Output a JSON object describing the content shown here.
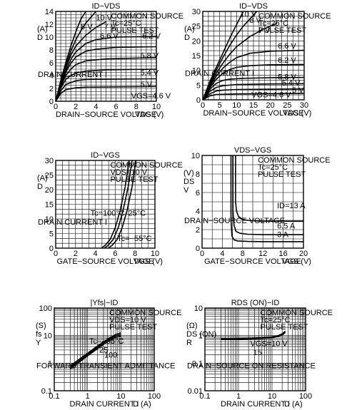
{
  "chart_data": [
    {
      "type": "line",
      "title": "ID−VDS",
      "annotation_lines": [
        "COMMON SOURCE",
        "Tc=25°C",
        "PULSE TEST"
      ],
      "xlabel": "DRAIN−SOURCE VOLTAGE",
      "xunit": "VDS (V)",
      "ylabel": "DRAIN CURRENT I",
      "yunit_lines": [
        "(A)",
        "D"
      ],
      "xlim": [
        0,
        10
      ],
      "ylim": [
        0,
        14
      ],
      "xticks": [
        "0",
        "2",
        "4",
        "6",
        "8",
        "10"
      ],
      "yticks": [
        "0",
        "2",
        "4",
        "6",
        "8",
        "10",
        "12",
        "14"
      ],
      "series": [
        {
          "name": "10 V",
          "x": [
            0,
            0.5,
            1,
            1.5,
            2,
            2.5,
            3
          ],
          "y": [
            0,
            3.2,
            6,
            8.6,
            10.8,
            12.8,
            14
          ]
        },
        {
          "name": "8 V",
          "x": [
            0,
            0.5,
            1,
            1.5,
            2,
            2.5,
            3,
            4
          ],
          "y": [
            0,
            3,
            5.6,
            7.8,
            9.6,
            11,
            12.2,
            14
          ]
        },
        {
          "name": "7 V",
          "x": [
            0,
            0.5,
            1,
            1.5,
            2,
            3,
            4,
            5
          ],
          "y": [
            0,
            2.8,
            5.2,
            7.2,
            8.6,
            10.3,
            11.5,
            12.4
          ]
        },
        {
          "name": "6.6 V",
          "x": [
            0,
            0.5,
            1,
            1.5,
            2,
            3,
            4,
            6,
            10
          ],
          "y": [
            0,
            2.6,
            4.8,
            6.5,
            7.7,
            9,
            9.6,
            10,
            10.1
          ]
        },
        {
          "name": "6.2 V",
          "x": [
            0,
            0.5,
            1,
            1.5,
            2,
            3,
            4,
            6,
            10
          ],
          "y": [
            0,
            2.5,
            4.5,
            5.9,
            6.9,
            7.8,
            8.1,
            8.4,
            8.5
          ]
        },
        {
          "name": "5.8 V",
          "x": [
            0,
            0.5,
            1,
            1.5,
            2,
            3,
            5,
            10
          ],
          "y": [
            0,
            2.3,
            4,
            5,
            5.7,
            6.3,
            6.6,
            6.8
          ]
        },
        {
          "name": "5.4 V",
          "x": [
            0,
            0.5,
            1,
            1.5,
            2,
            3,
            5,
            10
          ],
          "y": [
            0,
            2,
            3.4,
            4,
            4.4,
            4.7,
            4.9,
            5
          ]
        },
        {
          "name": "5 V",
          "x": [
            0,
            0.5,
            1,
            2,
            3,
            10
          ],
          "y": [
            0,
            1.6,
            2.6,
            3.2,
            3.4,
            3.5
          ]
        },
        {
          "name": "VGS=4.6 V",
          "x": [
            0,
            0.5,
            1,
            2,
            3,
            10
          ],
          "y": [
            0,
            1.2,
            1.8,
            2.1,
            2.2,
            2.3
          ]
        }
      ]
    },
    {
      "type": "line",
      "title": "ID−VDS",
      "annotation_lines": [
        "COMMON SOURCE",
        "Tc=25°C",
        "PULSE TEST"
      ],
      "xlabel": "DRAIN−SOURCE VOLTAGE",
      "xunit": "VDS (V)",
      "ylabel": "DRAIN CURRENT I",
      "yunit_lines": [
        "(A)",
        "D"
      ],
      "xlim": [
        0,
        30
      ],
      "ylim": [
        0,
        30
      ],
      "xticks": [
        "0",
        "5",
        "10",
        "15",
        "20",
        "25",
        "30"
      ],
      "yticks": [
        "0",
        "5",
        "10",
        "15",
        "20",
        "25",
        "30"
      ],
      "series": [
        {
          "name": "10 V",
          "x": [
            0,
            2,
            4,
            6,
            8,
            10,
            12
          ],
          "y": [
            0,
            6,
            11,
            16,
            21,
            25.5,
            30
          ]
        },
        {
          "name": "8 V",
          "x": [
            0,
            2,
            4,
            6,
            8,
            10,
            12,
            14,
            16
          ],
          "y": [
            0,
            5.5,
            10,
            14.5,
            18.5,
            22,
            25,
            27.5,
            30
          ]
        },
        {
          "name": "7 V",
          "x": [
            0,
            2,
            4,
            6,
            8,
            10,
            14,
            18,
            22
          ],
          "y": [
            0,
            5,
            9,
            12.5,
            15.5,
            18,
            21.5,
            24,
            26
          ]
        },
        {
          "name": "6.6 V",
          "x": [
            0,
            2,
            4,
            6,
            8,
            10,
            14,
            20,
            30
          ],
          "y": [
            0,
            4.5,
            8,
            10.8,
            12.8,
            14.3,
            15.8,
            16.5,
            16.8
          ]
        },
        {
          "name": "6.2 V",
          "x": [
            0,
            2,
            4,
            6,
            8,
            10,
            14,
            20,
            30
          ],
          "y": [
            0,
            4,
            7,
            9,
            10.3,
            11,
            11.6,
            11.9,
            12
          ]
        },
        {
          "name": "5.8 V",
          "x": [
            0,
            2,
            4,
            6,
            8,
            12,
            20,
            30
          ],
          "y": [
            0,
            3.5,
            5.6,
            6.6,
            7,
            7.3,
            7.5,
            7.6
          ]
        },
        {
          "name": "5.4 V",
          "x": [
            0,
            2,
            4,
            6,
            10,
            20,
            30
          ],
          "y": [
            0,
            2.8,
            4.2,
            4.8,
            5.2,
            5.4,
            5.5
          ]
        },
        {
          "name": "5 V",
          "x": [
            0,
            2,
            4,
            6,
            10,
            20,
            30
          ],
          "y": [
            0,
            2,
            3,
            3.3,
            3.5,
            3.6,
            3.7
          ]
        },
        {
          "name": "VGS=4.6 V",
          "x": [
            0,
            2,
            4,
            10,
            20,
            30
          ],
          "y": [
            0,
            1.3,
            1.8,
            2,
            2.1,
            2.2
          ]
        }
      ]
    },
    {
      "type": "line",
      "title": "ID−VGS",
      "annotation_lines": [
        "COMMON SOURCE",
        "VDS=10 V",
        "PULSE TEST"
      ],
      "xlabel": "GATE−SOURCE VOLTAGE",
      "xunit": "VGS (V)",
      "ylabel": "DRAIN CURRENT I",
      "yunit_lines": [
        "(A)",
        "D"
      ],
      "xlim": [
        0,
        10
      ],
      "ylim": [
        0,
        30
      ],
      "xticks": [
        "0",
        "2",
        "4",
        "6",
        "8",
        "10"
      ],
      "yticks": [
        "0",
        "5",
        "10",
        "15",
        "20",
        "25",
        "30"
      ],
      "series": [
        {
          "name": "Tc=100°C",
          "x": [
            4.6,
            5,
            5.5,
            6,
            6.5,
            7,
            7.4
          ],
          "y": [
            0,
            1,
            3,
            7,
            13,
            21,
            30
          ]
        },
        {
          "name": "25°C",
          "x": [
            4.9,
            5.3,
            5.8,
            6.3,
            6.8,
            7.3,
            7.7
          ],
          "y": [
            0,
            1,
            3,
            7,
            13,
            21,
            30
          ]
        },
        {
          "name": "Tc=−55°C",
          "x": [
            5.3,
            5.7,
            6.2,
            6.7,
            7.2,
            7.7,
            8.1
          ],
          "y": [
            0,
            1,
            3,
            7,
            13,
            21,
            30
          ]
        }
      ]
    },
    {
      "type": "line",
      "title": "VDS−VGS",
      "annotation_lines": [
        "COMMON SOURCE",
        "Tc=25°C",
        "PULSE TEST"
      ],
      "xlabel": "GATE−SOURCE VOLTAGE",
      "xunit": "VGS (V)",
      "ylabel": "DRAIN−SOURCE VOLTAGE",
      "yunit_lines": [
        "(V)",
        "DS",
        "V"
      ],
      "xlim": [
        0,
        20
      ],
      "ylim": [
        0,
        10
      ],
      "xticks": [
        "0",
        "4",
        "8",
        "12",
        "16",
        "20"
      ],
      "yticks": [
        "0",
        "2",
        "4",
        "6",
        "8",
        "10"
      ],
      "series": [
        {
          "name": "ID=13 A",
          "x": [
            6.6,
            6.6,
            6.8,
            7.2,
            8,
            9,
            12,
            16,
            20
          ],
          "y": [
            10,
            5,
            4,
            3.4,
            3.1,
            3,
            2.9,
            2.9,
            2.9
          ]
        },
        {
          "name": "6.5 A",
          "x": [
            6.1,
            6.1,
            6.3,
            6.7,
            7.5,
            9,
            12,
            16,
            20
          ],
          "y": [
            10,
            4,
            2.5,
            1.8,
            1.6,
            1.5,
            1.45,
            1.45,
            1.45
          ]
        },
        {
          "name": "3 A",
          "x": [
            5.7,
            5.7,
            5.9,
            6.3,
            7,
            9,
            12,
            16,
            20
          ],
          "y": [
            10,
            3,
            1.3,
            0.9,
            0.78,
            0.72,
            0.7,
            0.7,
            0.7
          ]
        }
      ]
    },
    {
      "type": "line",
      "title": "|Yfs|−ID",
      "annotation_lines": [
        "COMMON SOURCE",
        "VDS=10 V",
        "PULSE TEST"
      ],
      "xlabel": "DRAIN CURRENT I",
      "xunit": "D (A)",
      "ylabel": "FORWARD TRANSIENT ADMITTANCE",
      "yunit_lines": [
        "(S)",
        "fs",
        "Y"
      ],
      "xscale": "log",
      "yscale": "log",
      "xlim": [
        0.1,
        100
      ],
      "ylim": [
        0.1,
        100
      ],
      "xticks": [
        "0.1",
        "1",
        "10",
        "100"
      ],
      "yticks": [
        "0.1",
        "1",
        "10",
        "100"
      ],
      "series": [
        {
          "name": "Tc=−55°C",
          "x": [
            0.3,
            0.5,
            1,
            2,
            4,
            7,
            10
          ],
          "y": [
            0.8,
            1.25,
            2.3,
            4.2,
            7.5,
            11,
            12.5
          ]
        },
        {
          "name": "25",
          "x": [
            0.3,
            0.5,
            1,
            2,
            4,
            7,
            10
          ],
          "y": [
            0.7,
            1.1,
            2.05,
            3.8,
            6.8,
            9.8,
            11
          ]
        },
        {
          "name": "100",
          "x": [
            0.3,
            0.5,
            1,
            2,
            4,
            7,
            10
          ],
          "y": [
            0.62,
            0.98,
            1.85,
            3.4,
            6.1,
            8.7,
            9.6
          ]
        }
      ]
    },
    {
      "type": "line",
      "title": "RDS (ON)−ID",
      "annotation_lines": [
        "COMMON SOURCE",
        "Tc=25°C",
        "PULSE TEST"
      ],
      "xlabel": "DRAIN CURRENT I",
      "xunit": "D (A)",
      "ylabel": "DRAIN−SOURCE ON RESISTANCE",
      "yunit_lines": [
        "(Ω)",
        "DS (ON)",
        "R"
      ],
      "series_labels": [
        "VGS=10 V",
        "15"
      ],
      "xscale": "log",
      "yscale": "log",
      "xlim": [
        0.1,
        100
      ],
      "ylim": [
        0.01,
        10
      ],
      "xticks": [
        "0.1",
        "1",
        "10",
        "100"
      ],
      "yticks": [
        "0.01",
        "0.1",
        "1",
        "10"
      ],
      "series": [
        {
          "name": "VGS=10 V",
          "x": [
            0.3,
            0.5,
            1,
            2,
            5,
            10,
            15,
            20,
            25
          ],
          "y": [
            0.78,
            0.78,
            0.79,
            0.8,
            0.83,
            0.9,
            1.0,
            1.15,
            1.45
          ]
        },
        {
          "name": "15",
          "x": [
            0.3,
            0.5,
            1,
            2,
            5,
            10,
            15,
            20,
            25
          ],
          "y": [
            0.73,
            0.73,
            0.74,
            0.75,
            0.78,
            0.84,
            0.93,
            1.06,
            1.3
          ]
        }
      ]
    }
  ]
}
